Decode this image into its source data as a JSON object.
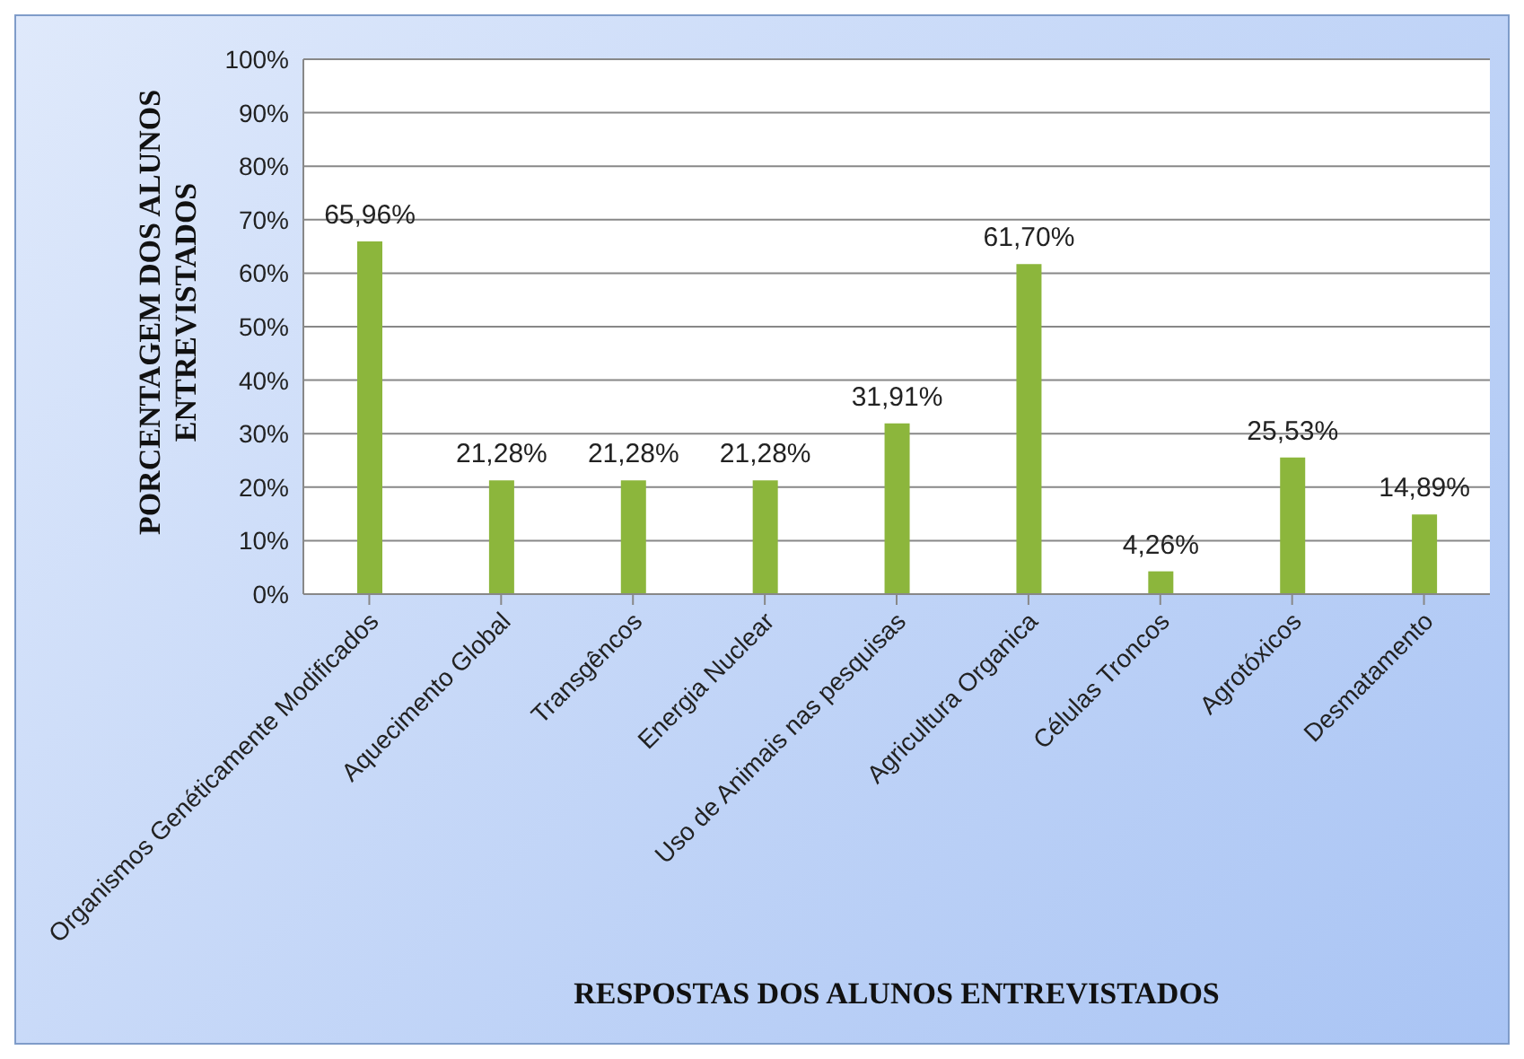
{
  "chart_data": {
    "type": "bar",
    "xlabel": "RESPOSTAS DOS ALUNOS ENTREVISTADOS",
    "ylabel": "PORCENTAGEM  DOS ALUNOS\nENTREVISTADOS",
    "categories": [
      "Organismos Genéticamente Modificados",
      "Aquecimento Global",
      "Transgêncos",
      "Energia Nuclear",
      "Uso de Animais nas pesquisas",
      "Agricultura Organica",
      "Células Troncos",
      "Agrotóxicos",
      "Desmatamento"
    ],
    "values": [
      65.96,
      21.28,
      21.28,
      21.28,
      31.91,
      61.7,
      4.26,
      25.53,
      14.89
    ],
    "value_labels": [
      "65,96%",
      "21,28%",
      "21,28%",
      "21,28%",
      "31,91%",
      "61,70%",
      "4,26%",
      "25,53%",
      "14,89%"
    ],
    "color": "#8cb63c",
    "ylim": [
      0,
      100
    ],
    "yticks": [
      {
        "value": 0,
        "label": "0%"
      },
      {
        "value": 10,
        "label": "10%"
      },
      {
        "value": 20,
        "label": "20%"
      },
      {
        "value": 30,
        "label": "30%"
      },
      {
        "value": 40,
        "label": "40%"
      },
      {
        "value": 50,
        "label": "50%"
      },
      {
        "value": 60,
        "label": "60%"
      },
      {
        "value": 70,
        "label": "70%"
      },
      {
        "value": 80,
        "label": "80%"
      },
      {
        "value": 90,
        "label": "90%"
      },
      {
        "value": 100,
        "label": "100%"
      }
    ],
    "grid": "y",
    "legend": false
  }
}
